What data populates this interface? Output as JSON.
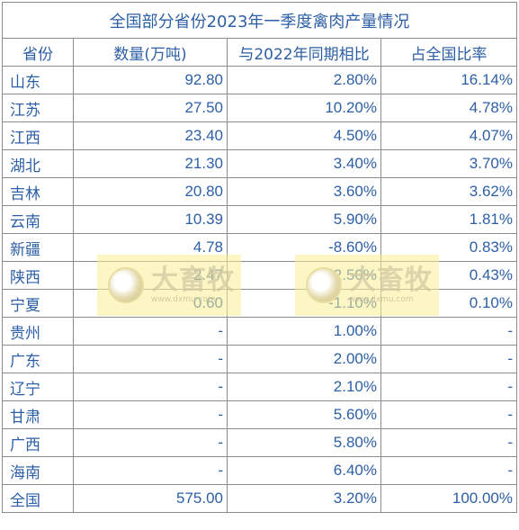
{
  "title": "全国部分省份2023年一季度禽肉产量情况",
  "headers": [
    "省份",
    "数量(万吨)",
    "与2022年同期相比",
    "占全国比率"
  ],
  "rows": [
    [
      "山东",
      "92.80",
      "2.80%",
      "16.14%"
    ],
    [
      "江苏",
      "27.50",
      "10.20%",
      "4.78%"
    ],
    [
      "江西",
      "23.40",
      "4.50%",
      "4.07%"
    ],
    [
      "湖北",
      "21.30",
      "3.40%",
      "3.70%"
    ],
    [
      "吉林",
      "20.80",
      "3.60%",
      "3.62%"
    ],
    [
      "云南",
      "10.39",
      "5.90%",
      "1.81%"
    ],
    [
      "新疆",
      "4.78",
      "-8.60%",
      "0.83%"
    ],
    [
      "陕西",
      "2.47",
      "2.50%",
      "0.43%"
    ],
    [
      "宁夏",
      "0.60",
      "-1.10%",
      "0.10%"
    ],
    [
      "贵州",
      "-",
      "1.00%",
      "-"
    ],
    [
      "广东",
      "-",
      "2.00%",
      "-"
    ],
    [
      "辽宁",
      "-",
      "2.10%",
      "-"
    ],
    [
      "甘肃",
      "-",
      "5.60%",
      "-"
    ],
    [
      "广西",
      "-",
      "5.80%",
      "-"
    ],
    [
      "海南",
      "-",
      "6.40%",
      "-"
    ],
    [
      "全国",
      "575.00",
      "3.20%",
      "100.00%"
    ]
  ],
  "watermark": {
    "brand": "大畜牧",
    "url": "www.dxmu.com"
  },
  "colors": {
    "text": "#2d5fa6",
    "border": "#8c8c8c",
    "watermark_bg": "#faee96"
  }
}
